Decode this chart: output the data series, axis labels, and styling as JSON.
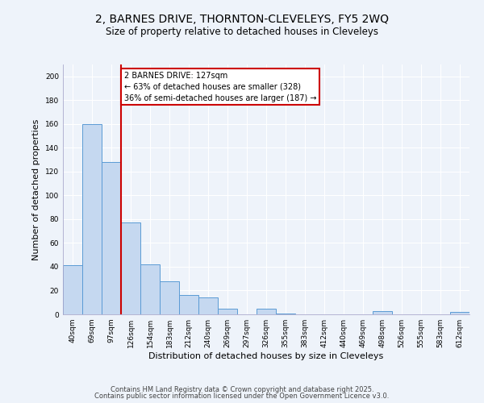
{
  "title1": "2, BARNES DRIVE, THORNTON-CLEVELEYS, FY5 2WQ",
  "title2": "Size of property relative to detached houses in Cleveleys",
  "xlabel": "Distribution of detached houses by size in Cleveleys",
  "ylabel": "Number of detached properties",
  "categories": [
    "40sqm",
    "69sqm",
    "97sqm",
    "126sqm",
    "154sqm",
    "183sqm",
    "212sqm",
    "240sqm",
    "269sqm",
    "297sqm",
    "326sqm",
    "355sqm",
    "383sqm",
    "412sqm",
    "440sqm",
    "469sqm",
    "498sqm",
    "526sqm",
    "555sqm",
    "583sqm",
    "612sqm"
  ],
  "values": [
    41,
    160,
    128,
    77,
    42,
    28,
    16,
    14,
    5,
    0,
    5,
    1,
    0,
    0,
    0,
    0,
    3,
    0,
    0,
    0,
    2
  ],
  "bar_color": "#c5d8f0",
  "bar_edge_color": "#5b9bd5",
  "vline_color": "#cc0000",
  "annotation_line1": "2 BARNES DRIVE: 127sqm",
  "annotation_line2": "← 63% of detached houses are smaller (328)",
  "annotation_line3": "36% of semi-detached houses are larger (187) →",
  "annotation_box_color": "#ffffff",
  "annotation_box_edge": "#cc0000",
  "ylim": [
    0,
    210
  ],
  "yticks": [
    0,
    20,
    40,
    60,
    80,
    100,
    120,
    140,
    160,
    180,
    200
  ],
  "bg_color": "#eef3fa",
  "grid_color": "#d0dae8",
  "footer1": "Contains HM Land Registry data © Crown copyright and database right 2025.",
  "footer2": "Contains public sector information licensed under the Open Government Licence v3.0."
}
